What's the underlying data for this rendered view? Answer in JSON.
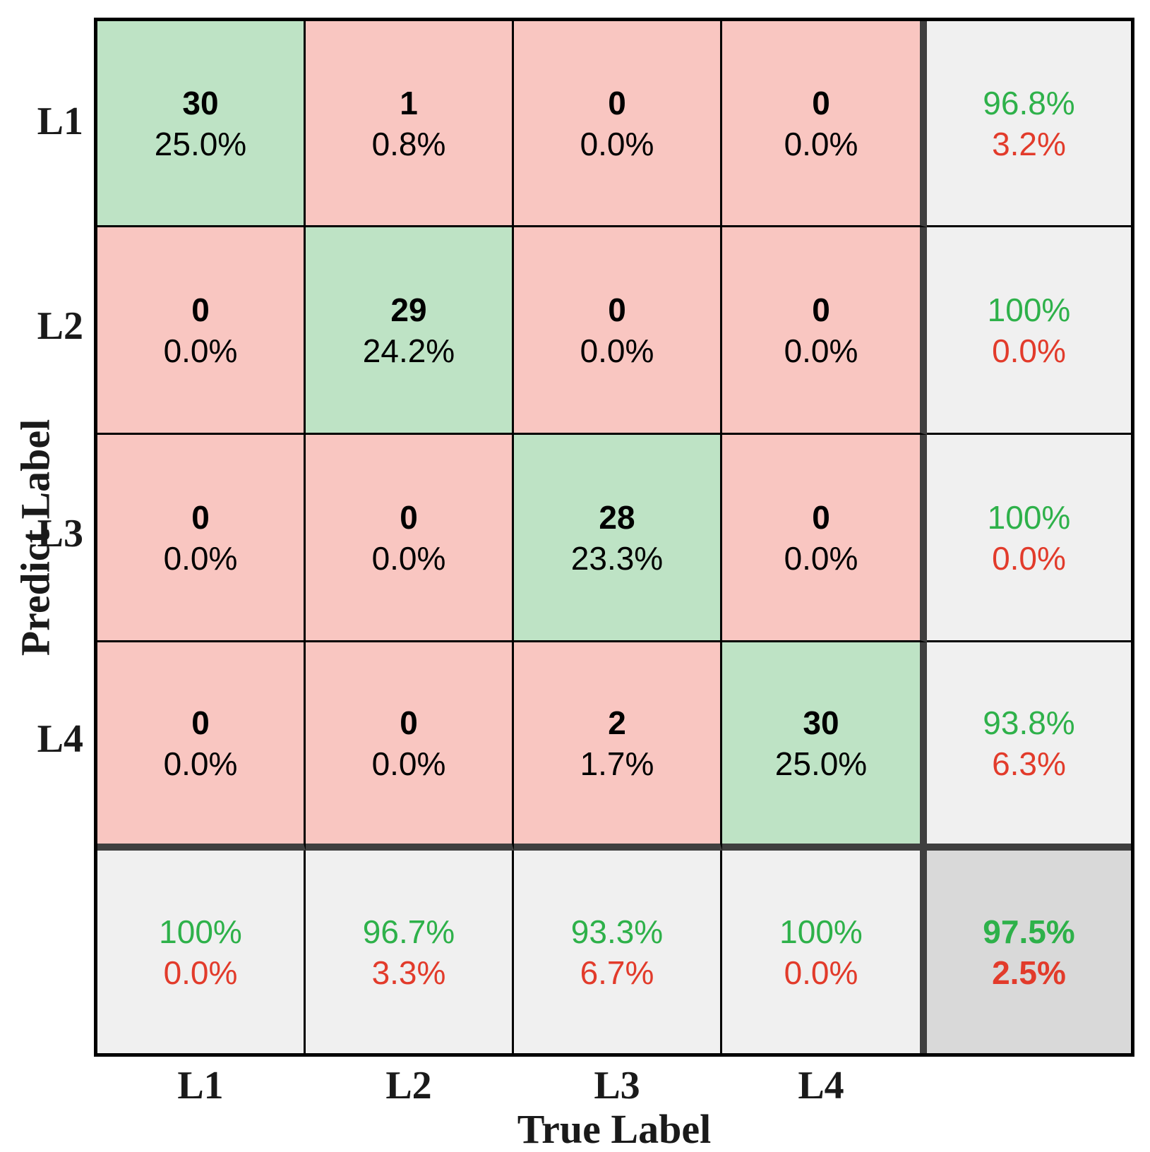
{
  "chart_data": {
    "type": "heatmap",
    "variant": "confusion-matrix",
    "xlabel": "True Label",
    "ylabel": "Predict Label",
    "x_categories": [
      "L1",
      "L2",
      "L3",
      "L4"
    ],
    "y_categories": [
      "L1",
      "L2",
      "L3",
      "L4"
    ],
    "cells": [
      [
        {
          "count": "30",
          "pct": "25.0%"
        },
        {
          "count": "1",
          "pct": "0.8%"
        },
        {
          "count": "0",
          "pct": "0.0%"
        },
        {
          "count": "0",
          "pct": "0.0%"
        }
      ],
      [
        {
          "count": "0",
          "pct": "0.0%"
        },
        {
          "count": "29",
          "pct": "24.2%"
        },
        {
          "count": "0",
          "pct": "0.0%"
        },
        {
          "count": "0",
          "pct": "0.0%"
        }
      ],
      [
        {
          "count": "0",
          "pct": "0.0%"
        },
        {
          "count": "0",
          "pct": "0.0%"
        },
        {
          "count": "28",
          "pct": "23.3%"
        },
        {
          "count": "0",
          "pct": "0.0%"
        }
      ],
      [
        {
          "count": "0",
          "pct": "0.0%"
        },
        {
          "count": "0",
          "pct": "0.0%"
        },
        {
          "count": "2",
          "pct": "1.7%"
        },
        {
          "count": "30",
          "pct": "25.0%"
        }
      ]
    ],
    "row_summary": [
      {
        "pos": "96.8%",
        "neg": "3.2%"
      },
      {
        "pos": "100%",
        "neg": "0.0%"
      },
      {
        "pos": "100%",
        "neg": "0.0%"
      },
      {
        "pos": "93.8%",
        "neg": "6.3%"
      }
    ],
    "col_summary": [
      {
        "pos": "100%",
        "neg": "0.0%"
      },
      {
        "pos": "96.7%",
        "neg": "3.3%"
      },
      {
        "pos": "93.3%",
        "neg": "6.7%"
      },
      {
        "pos": "100%",
        "neg": "0.0%"
      }
    ],
    "overall": {
      "pos": "97.5%",
      "neg": "2.5%"
    },
    "colors": {
      "diagonal_bg": "#bee3c5",
      "off_diagonal_bg": "#f9c6c1",
      "summary_bg": "#f0f0f0",
      "overall_bg": "#d9d9d9",
      "positive_text": "#2eb14a",
      "negative_text": "#e23b2b",
      "thin_line": "#000000",
      "separator_line": "#3f3f3f"
    }
  }
}
